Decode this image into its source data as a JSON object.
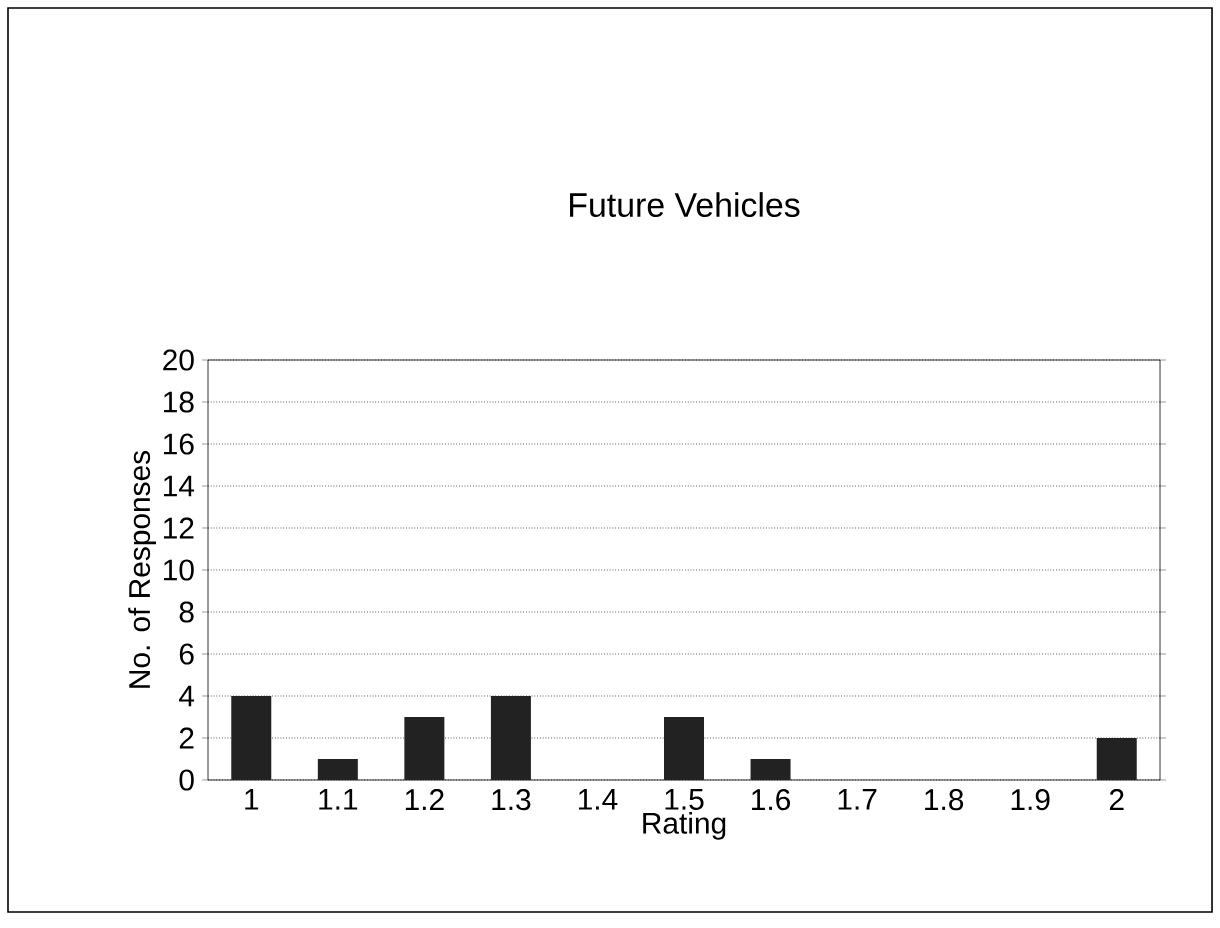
{
  "chart_data": {
    "type": "bar",
    "title": "Future Vehicles",
    "xlabel": "Rating",
    "ylabel": "No. of Responses",
    "categories": [
      "1",
      "1.1",
      "1.2",
      "1.3",
      "1.4",
      "1.5",
      "1.6",
      "1.7",
      "1.8",
      "1.9",
      "2"
    ],
    "values": [
      4,
      1,
      3,
      4,
      0,
      3,
      1,
      0,
      0,
      0,
      2
    ],
    "color": "#222222",
    "ylim": [
      0,
      20
    ],
    "yticks": [
      0,
      2,
      4,
      6,
      8,
      10,
      12,
      14,
      16,
      18,
      20
    ],
    "grid": "y"
  }
}
